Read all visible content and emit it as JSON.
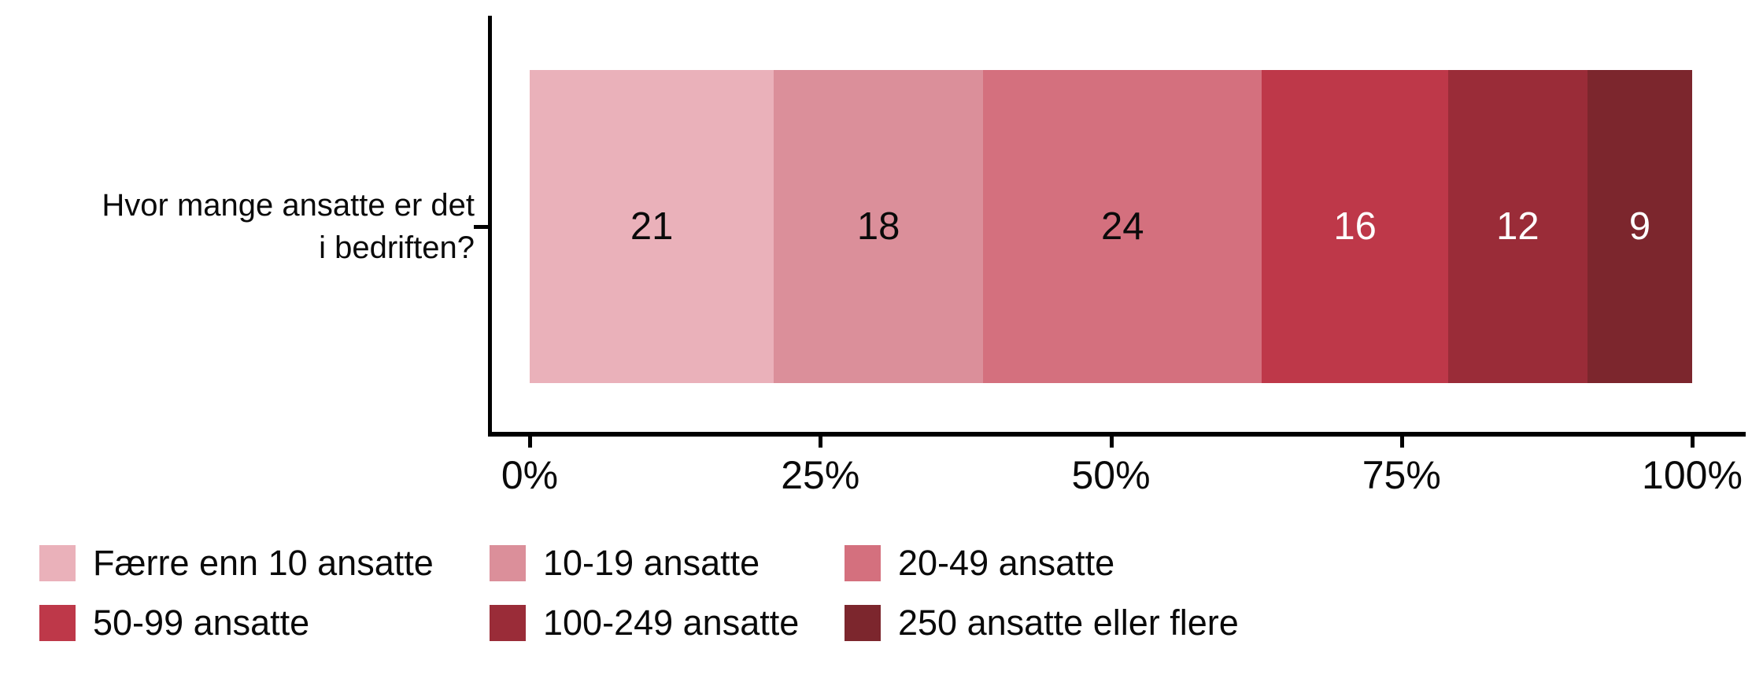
{
  "chart_data": {
    "type": "bar",
    "stacked": true,
    "orientation": "horizontal",
    "title": "",
    "categories": [
      "Hvor mange ansatte er det i bedriften?"
    ],
    "question_label_lines": [
      "Hvor mange ansatte er det",
      "i bedriften?"
    ],
    "series": [
      {
        "name": "Færre enn 10 ansatte",
        "value": 21,
        "color": "#EAB1BA",
        "label_color": "#0a0a0a"
      },
      {
        "name": "10-19 ansatte",
        "value": 18,
        "color": "#DB8F9A",
        "label_color": "#0a0a0a"
      },
      {
        "name": "20-49 ansatte",
        "value": 24,
        "color": "#D4707E",
        "label_color": "#0a0a0a"
      },
      {
        "name": "50-99 ansatte",
        "value": 16,
        "color": "#BE3849",
        "label_color": "#ffffff"
      },
      {
        "name": "100-249 ansatte",
        "value": 12,
        "color": "#9A2C38",
        "label_color": "#ffffff"
      },
      {
        "name": "250 ansatte eller flere",
        "value": 9,
        "color": "#7C262D",
        "label_color": "#ffffff"
      }
    ],
    "x_axis": {
      "ticks": [
        "0%",
        "25%",
        "50%",
        "75%",
        "100%"
      ],
      "range": [
        0,
        100
      ],
      "unit": "%"
    },
    "ylim": [
      0,
      100
    ],
    "grid": false,
    "legend_position": "bottom",
    "axis_color": "#000000",
    "background_color": "#ffffff"
  }
}
